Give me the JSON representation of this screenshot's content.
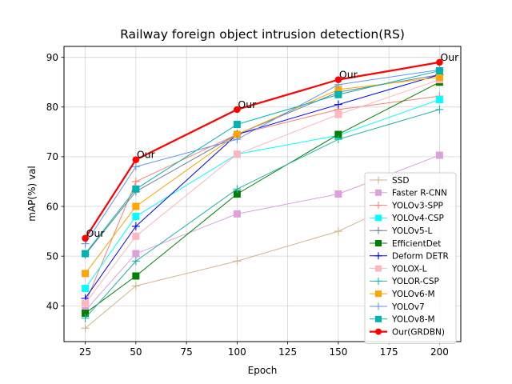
{
  "chart_data": {
    "type": "line",
    "title": "Railway foreign object intrusion detection(RS)",
    "xlabel": "Epoch",
    "ylabel": "mAP(%) val",
    "xlim": [
      14.5,
      210.5
    ],
    "ylim": [
      32.8,
      92.2
    ],
    "x": [
      25,
      50,
      100,
      150,
      200
    ],
    "xticks": [
      25,
      50,
      75,
      100,
      125,
      150,
      175,
      200
    ],
    "yticks": [
      40,
      50,
      60,
      70,
      80,
      90
    ],
    "grid": true,
    "legend_position": "lower-right",
    "annotation_text": "Our",
    "series": [
      {
        "name": "SSD",
        "color": "#d2b48c",
        "marker": "plus",
        "lw": 1,
        "values": [
          35.5,
          44.0,
          49.0,
          55.0,
          64.5
        ]
      },
      {
        "name": "Faster R-CNN",
        "color": "#dda0dd",
        "marker": "square",
        "lw": 1,
        "values": [
          39.0,
          50.5,
          58.5,
          62.5,
          70.3
        ]
      },
      {
        "name": "YOLOv3-SPP",
        "color": "#fa8072",
        "marker": "plus",
        "lw": 1,
        "values": [
          40.5,
          65.0,
          74.5,
          79.5,
          82.2
        ]
      },
      {
        "name": "YOLOv4-CSP",
        "color": "#00ffff",
        "marker": "square",
        "lw": 1,
        "values": [
          43.5,
          58.0,
          70.5,
          74.3,
          81.5
        ]
      },
      {
        "name": "YOLOv5-L",
        "color": "#708090",
        "marker": "plus",
        "lw": 1,
        "values": [
          50.3,
          63.0,
          74.5,
          83.0,
          86.5
        ]
      },
      {
        "name": "EfficientDet",
        "color": "#008000",
        "marker": "square",
        "lw": 1,
        "values": [
          38.5,
          46.0,
          62.5,
          74.5,
          85.0
        ]
      },
      {
        "name": "Deform DETR",
        "color": "#0000ff",
        "marker": "plus",
        "lw": 1,
        "values": [
          41.5,
          56.0,
          74.5,
          80.5,
          86.5
        ]
      },
      {
        "name": "YOLOX-L",
        "color": "#ffb6c1",
        "marker": "square",
        "lw": 1,
        "values": [
          40.5,
          54.0,
          70.5,
          78.5,
          85.5
        ]
      },
      {
        "name": "YOLOR-CSP",
        "color": "#20b2aa",
        "marker": "plus",
        "lw": 1,
        "values": [
          37.5,
          49.0,
          63.5,
          73.5,
          79.5
        ]
      },
      {
        "name": "YOLOv6-M",
        "color": "#ffa500",
        "marker": "square",
        "lw": 1,
        "values": [
          46.5,
          60.0,
          74.5,
          83.5,
          86.0
        ]
      },
      {
        "name": "YOLOv7",
        "color": "#6495ed",
        "marker": "plus",
        "lw": 1,
        "values": [
          52.5,
          68.0,
          73.5,
          84.5,
          87.5
        ]
      },
      {
        "name": "YOLOv8-M",
        "color": "#00b3b3",
        "marker": "square",
        "lw": 1,
        "values": [
          50.5,
          63.5,
          76.5,
          82.5,
          87.3
        ]
      },
      {
        "name": "Our(GRDBN)",
        "color": "#ff0000",
        "marker": "circle",
        "lw": 2.2,
        "values": [
          53.6,
          69.4,
          79.5,
          85.5,
          89.0
        ]
      }
    ]
  }
}
